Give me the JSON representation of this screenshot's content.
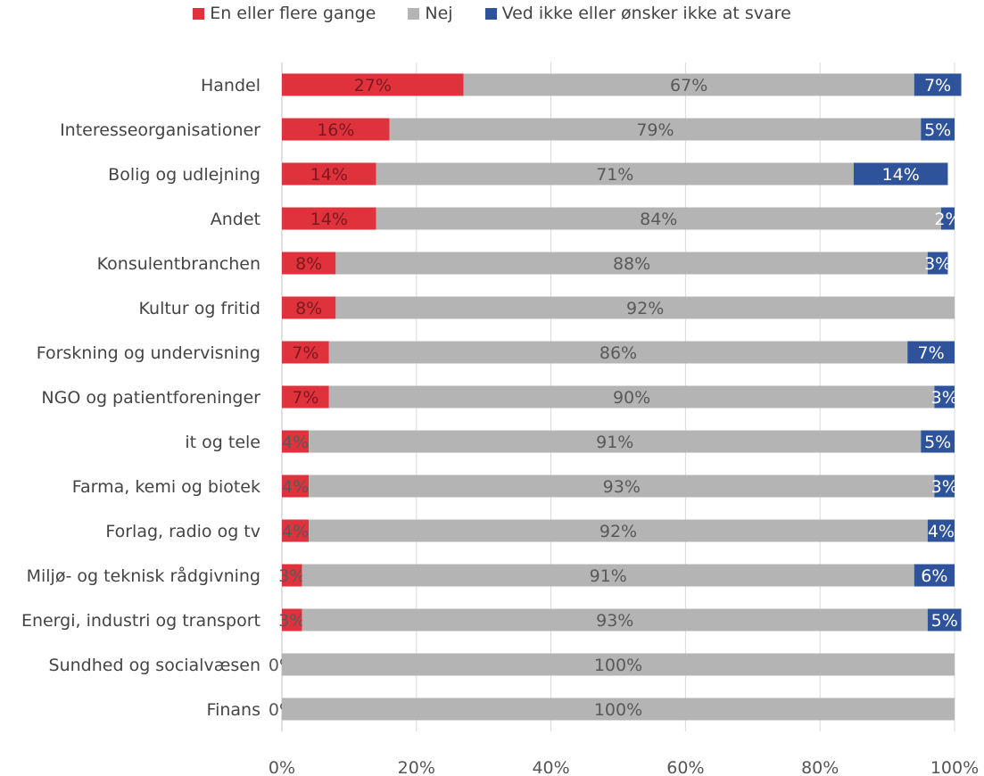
{
  "chart_data": {
    "type": "bar",
    "orientation": "horizontal",
    "stacked": "percent",
    "categories": [
      "Handel",
      "Interesseorganisationer",
      "Bolig og udlejning",
      "Andet",
      "Konsulentbranchen",
      "Kultur og fritid",
      "Forskning og undervisning",
      "NGO og patientforeninger",
      "it og tele",
      "Farma, kemi og biotek",
      "Forlag, radio og tv",
      "Miljø- og teknisk rådgivning",
      "Energi, industri og transport",
      "Sundhed og socialvæsen",
      "Finans"
    ],
    "series": [
      {
        "name": "En eller flere gange",
        "color": "#E0323C",
        "values": [
          27,
          16,
          14,
          14,
          8,
          8,
          7,
          7,
          4,
          4,
          4,
          3,
          3,
          0,
          0
        ],
        "labels": [
          "27%",
          "16%",
          "14%",
          "14%",
          "8%",
          "8%",
          "7%",
          "7%",
          "4%",
          "4%",
          "4%",
          "3%",
          "3%",
          "0%",
          "0%"
        ]
      },
      {
        "name": "Nej",
        "color": "#B4B4B4",
        "values": [
          67,
          79,
          71,
          84,
          88,
          92,
          86,
          90,
          91,
          93,
          92,
          91,
          93,
          100,
          100
        ],
        "labels": [
          "67%",
          "79%",
          "71%",
          "84%",
          "88%",
          "92%",
          "86%",
          "90%",
          "91%",
          "93%",
          "92%",
          "91%",
          "93%",
          "100%",
          "100%"
        ]
      },
      {
        "name": "Ved ikke eller ønsker ikke at svare",
        "color": "#2F539B",
        "values": [
          7,
          5,
          14,
          2,
          3,
          0,
          7,
          3,
          5,
          3,
          4,
          6,
          5,
          0,
          0
        ],
        "labels": [
          "7%",
          "5%",
          "14%",
          "2%",
          "3%",
          "",
          "7%",
          "3%",
          "5%",
          "3%",
          "4%",
          "6%",
          "5%",
          "",
          ""
        ]
      }
    ],
    "xlim": [
      0,
      100
    ],
    "xticks": [
      "0%",
      "20%",
      "40%",
      "60%",
      "80%",
      "100%"
    ],
    "grid": true,
    "legend_position": "top"
  }
}
